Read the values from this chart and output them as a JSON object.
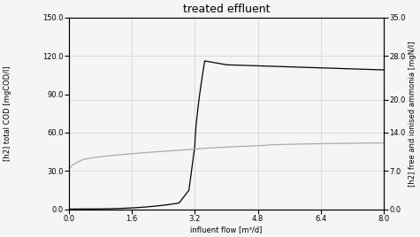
{
  "title": "treated effluent",
  "xlabel": "influent flow [m³/d]",
  "ylabel_left": "[h2] free and ionised ammonia [mgN/l]",
  "ylabel_right": "[h2] total COD [mgCOD/l]",
  "xlim": [
    0.0,
    8.0
  ],
  "ylim_left": [
    0.0,
    35.0
  ],
  "ylim_right": [
    0.0,
    150.0
  ],
  "xticks": [
    0.0,
    1.6,
    3.2,
    4.8,
    6.4,
    8.0
  ],
  "yticks_left": [
    0.0,
    7.0,
    14.0,
    20.0,
    28.0,
    35.0
  ],
  "yticks_right": [
    0.0,
    30.0,
    60.0,
    90.0,
    120.0,
    150.0
  ],
  "line_color_black": "#000000",
  "line_color_gray": "#aaaaaa",
  "background_color": "#f5f5f5",
  "grid_color": "#d0d0d0",
  "title_fontsize": 9,
  "axis_fontsize": 6.0,
  "tick_fontsize": 6.0
}
